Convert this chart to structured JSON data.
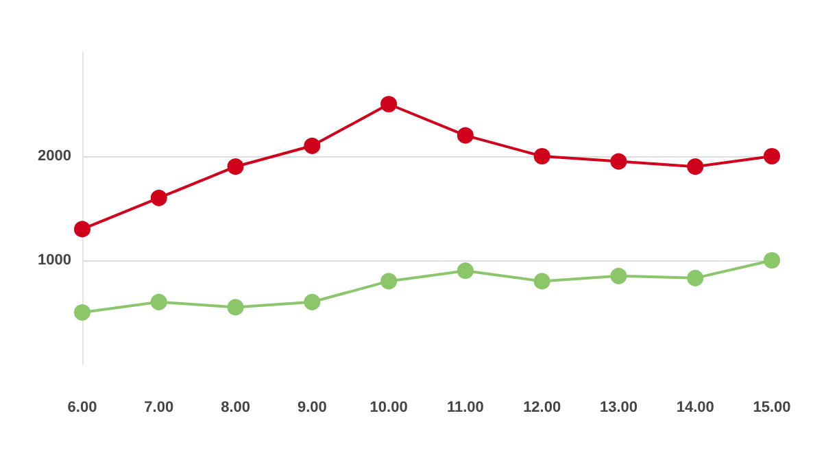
{
  "chart_data": {
    "type": "line",
    "categories": [
      "6.00",
      "7.00",
      "8.00",
      "9.00",
      "10.00",
      "11.00",
      "12.00",
      "13.00",
      "14.00",
      "15.00"
    ],
    "series": [
      {
        "color": "#d0021b",
        "values": [
          1300,
          1600,
          1900,
          2100,
          2500,
          2200,
          2000,
          1950,
          1900,
          2000
        ]
      },
      {
        "color": "#8cc66b",
        "values": [
          500,
          600,
          550,
          600,
          800,
          900,
          800,
          850,
          830,
          1000
        ]
      }
    ],
    "ylim": [
      0,
      3000
    ],
    "yticks": [
      1000,
      2000
    ],
    "grid": "y",
    "marker": "circle",
    "line_style": "solid"
  }
}
